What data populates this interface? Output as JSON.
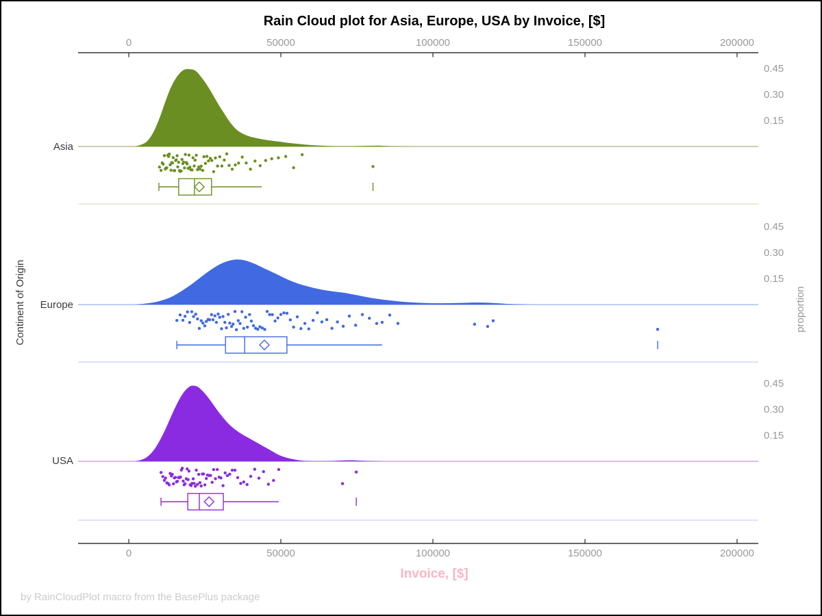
{
  "title": "Rain Cloud plot for Asia, Europe, USA by Invoice, [$]",
  "footer": "by RainCloudPlot macro from the BasePlus package",
  "axes": {
    "x_label": "Invoice, [$]",
    "y_label": "Continent of Origin",
    "y2_label": "proportion",
    "x_tick_labels": [
      "0",
      "50000",
      "100000",
      "150000",
      "200000"
    ],
    "y2_tick_labels": [
      "0.45",
      "0.30",
      "0.15"
    ]
  },
  "colors": {
    "x_label": "#f8b6c4",
    "tick_text": "#999999",
    "axis_line": "#333333",
    "footer_text": "#cccccc"
  },
  "chart_data": {
    "type": "raincloud",
    "title": "Rain Cloud plot for Asia, Europe, USA by Invoice, [$]",
    "xlabel": "Invoice, [$]",
    "ylabel_left": "Continent of Origin",
    "ylabel_right": "proportion",
    "x_ticks": [
      0,
      50000,
      100000,
      150000,
      200000
    ],
    "x_range": [
      -16600,
      207000
    ],
    "proportion_ticks": [
      0.15,
      0.3,
      0.45
    ],
    "categories": [
      "Asia",
      "Europe",
      "USA"
    ],
    "series": [
      {
        "name": "Asia",
        "color": "#6B8E23",
        "baseline_color": "#b7c48c",
        "separator_color": "#e0e5cd",
        "density": [
          [
            2000,
            0
          ],
          [
            4000,
            0.01
          ],
          [
            6000,
            0.03
          ],
          [
            8000,
            0.08
          ],
          [
            10000,
            0.16
          ],
          [
            12000,
            0.26
          ],
          [
            14000,
            0.35
          ],
          [
            16000,
            0.41
          ],
          [
            18000,
            0.445
          ],
          [
            20000,
            0.45
          ],
          [
            22000,
            0.44
          ],
          [
            24000,
            0.4
          ],
          [
            26000,
            0.35
          ],
          [
            28000,
            0.29
          ],
          [
            30000,
            0.23
          ],
          [
            32000,
            0.175
          ],
          [
            34000,
            0.125
          ],
          [
            36000,
            0.09
          ],
          [
            38000,
            0.07
          ],
          [
            40000,
            0.057
          ],
          [
            43000,
            0.045
          ],
          [
            46000,
            0.036
          ],
          [
            50000,
            0.027
          ],
          [
            54000,
            0.018
          ],
          [
            58000,
            0.011
          ],
          [
            62000,
            0.006
          ],
          [
            66000,
            0.003
          ],
          [
            70000,
            0.002
          ],
          [
            74000,
            0.002
          ],
          [
            78000,
            0.004
          ],
          [
            82000,
            0.005
          ],
          [
            86000,
            0.002
          ],
          [
            90000,
            0.001
          ],
          [
            95000,
            0
          ]
        ],
        "box": {
          "whisker_low": 9900,
          "q1": 16400,
          "median": 21600,
          "q3": 27200,
          "whisker_high": 43700,
          "mean": 23200,
          "outliers": [
            80300
          ]
        },
        "rain": [
          10100,
          10600,
          11000,
          11300,
          11700,
          12000,
          12200,
          12500,
          12800,
          13100,
          13300,
          13600,
          13900,
          14100,
          14400,
          14600,
          14900,
          15100,
          15400,
          15600,
          15900,
          16100,
          16400,
          16700,
          16900,
          17200,
          17500,
          17800,
          18000,
          18300,
          18600,
          18900,
          19200,
          19500,
          19800,
          20100,
          20400,
          20800,
          21100,
          21500,
          21800,
          22200,
          22600,
          23000,
          23400,
          23800,
          24300,
          24700,
          25200,
          25700,
          26200,
          26800,
          27300,
          27900,
          28500,
          29200,
          29900,
          30600,
          31400,
          32200,
          33000,
          34000,
          35000,
          36100,
          37300,
          38600,
          40000,
          41500,
          43200,
          45000,
          47000,
          49200,
          51600,
          54200,
          57000,
          80300
        ]
      },
      {
        "name": "Europe",
        "color": "#4169E1",
        "baseline_color": "#a9bdf0",
        "separator_color": "#ccd7f7",
        "density": [
          [
            2000,
            0
          ],
          [
            5000,
            0.005
          ],
          [
            8000,
            0.012
          ],
          [
            11000,
            0.025
          ],
          [
            14000,
            0.045
          ],
          [
            17000,
            0.075
          ],
          [
            20000,
            0.11
          ],
          [
            23000,
            0.15
          ],
          [
            26000,
            0.19
          ],
          [
            29000,
            0.225
          ],
          [
            32000,
            0.25
          ],
          [
            35000,
            0.262
          ],
          [
            38000,
            0.258
          ],
          [
            41000,
            0.24
          ],
          [
            44000,
            0.215
          ],
          [
            47000,
            0.19
          ],
          [
            50000,
            0.165
          ],
          [
            53000,
            0.14
          ],
          [
            56000,
            0.12
          ],
          [
            59000,
            0.105
          ],
          [
            62000,
            0.092
          ],
          [
            65000,
            0.082
          ],
          [
            68000,
            0.075
          ],
          [
            71000,
            0.068
          ],
          [
            74000,
            0.058
          ],
          [
            77000,
            0.048
          ],
          [
            80000,
            0.038
          ],
          [
            84000,
            0.028
          ],
          [
            88000,
            0.02
          ],
          [
            92000,
            0.014
          ],
          [
            96000,
            0.01
          ],
          [
            100000,
            0.008
          ],
          [
            105000,
            0.008
          ],
          [
            110000,
            0.01
          ],
          [
            114000,
            0.012
          ],
          [
            118000,
            0.011
          ],
          [
            122000,
            0.007
          ],
          [
            126000,
            0.003
          ],
          [
            130000,
            0.001
          ],
          [
            134000,
            0
          ]
        ],
        "box": {
          "whisker_low": 15800,
          "q1": 31800,
          "median": 38100,
          "q3": 52000,
          "whisker_high": 83300,
          "mean": 44600,
          "outliers": [
            173900
          ]
        },
        "rain": [
          15800,
          16900,
          17800,
          18500,
          19300,
          20000,
          20700,
          21300,
          22000,
          22600,
          23200,
          23800,
          24400,
          25000,
          25500,
          26100,
          26600,
          27200,
          27700,
          28300,
          28800,
          29400,
          29900,
          30500,
          31000,
          31600,
          32100,
          32700,
          33200,
          33800,
          34300,
          34900,
          35400,
          36000,
          36600,
          37200,
          37800,
          38400,
          39000,
          39700,
          40300,
          41000,
          41700,
          42400,
          43100,
          43900,
          44700,
          45500,
          46300,
          47200,
          48100,
          49000,
          50000,
          51000,
          52000,
          53100,
          54200,
          55400,
          56600,
          57900,
          59200,
          60600,
          62000,
          63500,
          65100,
          66800,
          68600,
          70500,
          72500,
          74600,
          76800,
          79100,
          81500,
          83300,
          85800,
          88500,
          113700,
          118000,
          119800,
          173900
        ]
      },
      {
        "name": "USA",
        "color": "#8A2BE2",
        "baseline_color": "#c9a5ef",
        "separator_color": "#e3d4f7",
        "density": [
          [
            2000,
            0
          ],
          [
            4000,
            0.008
          ],
          [
            6000,
            0.025
          ],
          [
            8000,
            0.06
          ],
          [
            10000,
            0.115
          ],
          [
            12000,
            0.185
          ],
          [
            14000,
            0.265
          ],
          [
            16000,
            0.34
          ],
          [
            18000,
            0.4
          ],
          [
            20000,
            0.435
          ],
          [
            21500,
            0.44
          ],
          [
            23000,
            0.43
          ],
          [
            25000,
            0.395
          ],
          [
            27000,
            0.35
          ],
          [
            29000,
            0.3
          ],
          [
            31000,
            0.255
          ],
          [
            33000,
            0.215
          ],
          [
            35000,
            0.185
          ],
          [
            37000,
            0.16
          ],
          [
            39000,
            0.14
          ],
          [
            41000,
            0.12
          ],
          [
            43000,
            0.1
          ],
          [
            45000,
            0.08
          ],
          [
            47000,
            0.06
          ],
          [
            49000,
            0.04
          ],
          [
            51000,
            0.026
          ],
          [
            53000,
            0.016
          ],
          [
            55000,
            0.009
          ],
          [
            57000,
            0.004
          ],
          [
            59000,
            0.002
          ],
          [
            61000,
            0.001
          ],
          [
            64000,
            0.001
          ],
          [
            67000,
            0.002
          ],
          [
            70000,
            0.005
          ],
          [
            73000,
            0.006
          ],
          [
            76000,
            0.004
          ],
          [
            79000,
            0.002
          ],
          [
            82000,
            0.001
          ],
          [
            85000,
            0
          ]
        ],
        "box": {
          "whisker_low": 10600,
          "q1": 19400,
          "median": 23200,
          "q3": 31100,
          "whisker_high": 49300,
          "mean": 26400,
          "outliers": [
            74800
          ]
        },
        "rain": [
          10600,
          11200,
          11700,
          12100,
          12500,
          12900,
          13300,
          13600,
          14000,
          14300,
          14700,
          15000,
          15300,
          15700,
          16000,
          16300,
          16600,
          17000,
          17300,
          17600,
          17900,
          18200,
          18500,
          18900,
          19200,
          19500,
          19800,
          20200,
          20500,
          20800,
          21200,
          21500,
          21900,
          22200,
          22600,
          23000,
          23400,
          23800,
          24200,
          24600,
          25000,
          25500,
          25900,
          26400,
          26900,
          27400,
          27900,
          28500,
          29100,
          29700,
          30300,
          31000,
          31700,
          32400,
          33200,
          34000,
          34900,
          35800,
          36800,
          37800,
          38900,
          40100,
          41400,
          42800,
          44300,
          45900,
          47600,
          49300,
          70300,
          74800
        ]
      }
    ]
  }
}
